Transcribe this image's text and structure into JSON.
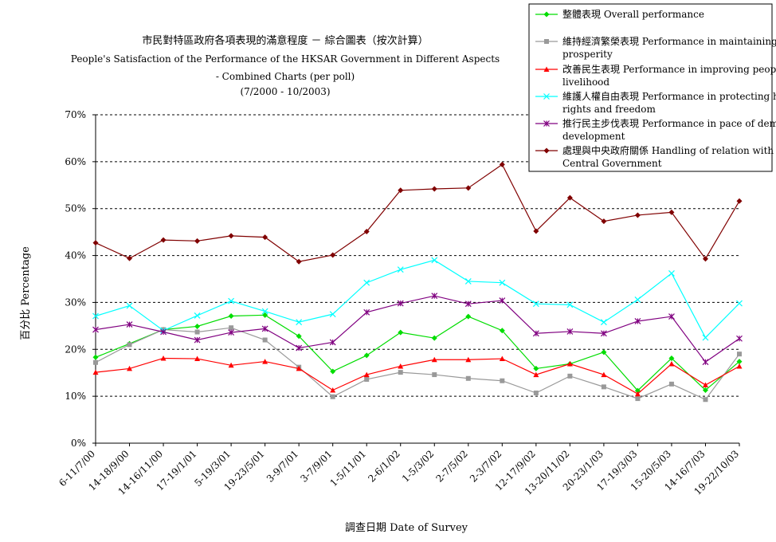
{
  "chart_data": {
    "type": "line",
    "title_lines": [
      "市民對特區政府各項表現的滿意程度 － 綜合圖表（按次計算）",
      "People's Satisfaction of the Performance of the HKSAR Government in Different Aspects",
      "- Combined Charts  (per poll)",
      "(7/2000 - 10/2003)"
    ],
    "xlabel": "調查日期 Date of Survey",
    "ylabel": "百分比 Percentage",
    "ylim": [
      0,
      70
    ],
    "yticks": [
      "0%",
      "10%",
      "20%",
      "30%",
      "40%",
      "50%",
      "60%",
      "70%"
    ],
    "grid": true,
    "legend_position": "top-right",
    "categories": [
      "6-11/7/00",
      "14-18/9/00",
      "14-16/11/00",
      "17-19/1/01",
      "5-19/3/01",
      "19-23/5/01",
      "3-9/7/01",
      "3-7/9/01",
      "1-5/11/01",
      "2-6/1/02",
      "1-5/3/02",
      "2-7/5/02",
      "2-3/7/02",
      "12-17/9/02",
      "13-20/11/02",
      "20-23/1/03",
      "17-19/3/03",
      "15-20/5/03",
      "14-16/7/03",
      "19-22/10/03"
    ],
    "series": [
      {
        "name": "整體表現 Overall performance",
        "color": "#00dd00",
        "marker": "diamond",
        "values": [
          18.3,
          21.2,
          24.2,
          24.9,
          27.1,
          27.3,
          22.8,
          15.3,
          18.7,
          23.6,
          22.4,
          27.0,
          24.0,
          15.9,
          16.9,
          19.4,
          11.2,
          18.1,
          11.3,
          17.4
        ]
      },
      {
        "name": "維持經濟繁榮表現 Performance in maintaining economic prosperity",
        "color": "#999999",
        "marker": "square",
        "values": [
          17.2,
          21.0,
          24.2,
          23.7,
          24.6,
          22.0,
          16.2,
          9.9,
          13.6,
          15.1,
          14.6,
          13.8,
          13.3,
          10.7,
          14.3,
          12.0,
          9.5,
          12.6,
          9.3,
          19.0
        ]
      },
      {
        "name": "改善民生表現 Performance in improving people's livelihood",
        "color": "#ff0000",
        "marker": "triangle",
        "values": [
          15.1,
          15.9,
          18.1,
          18.0,
          16.6,
          17.4,
          15.9,
          11.3,
          14.6,
          16.4,
          17.8,
          17.8,
          18.0,
          14.6,
          16.9,
          14.6,
          10.5,
          16.9,
          12.4,
          16.4
        ]
      },
      {
        "name": "維護人權自由表現 Performance in protecting human rights and freedom",
        "color": "#00ffff",
        "marker": "x",
        "values": [
          27.1,
          29.3,
          24.0,
          27.2,
          30.3,
          28.1,
          25.8,
          27.5,
          34.2,
          37.0,
          39.0,
          34.5,
          34.2,
          29.7,
          29.5,
          25.8,
          30.6,
          36.2,
          22.5,
          29.8
        ]
      },
      {
        "name": "推行民主步伐表現 Performance in pace of democratic development",
        "color": "#800080",
        "marker": "asterisk",
        "values": [
          24.2,
          25.3,
          23.7,
          22.0,
          23.6,
          24.4,
          20.3,
          21.5,
          27.9,
          29.8,
          31.4,
          29.7,
          30.4,
          23.4,
          23.8,
          23.4,
          26.0,
          27.0,
          17.3,
          22.3
        ]
      },
      {
        "name": "處理與中央政府關係 Handling of relation with the Central Government",
        "color": "#800000",
        "marker": "diamond",
        "values": [
          42.7,
          39.4,
          43.3,
          43.1,
          44.2,
          43.9,
          38.7,
          40.1,
          45.1,
          53.9,
          54.2,
          54.4,
          59.4,
          45.2,
          52.3,
          47.3,
          48.6,
          49.2,
          39.3,
          51.6
        ]
      }
    ]
  }
}
